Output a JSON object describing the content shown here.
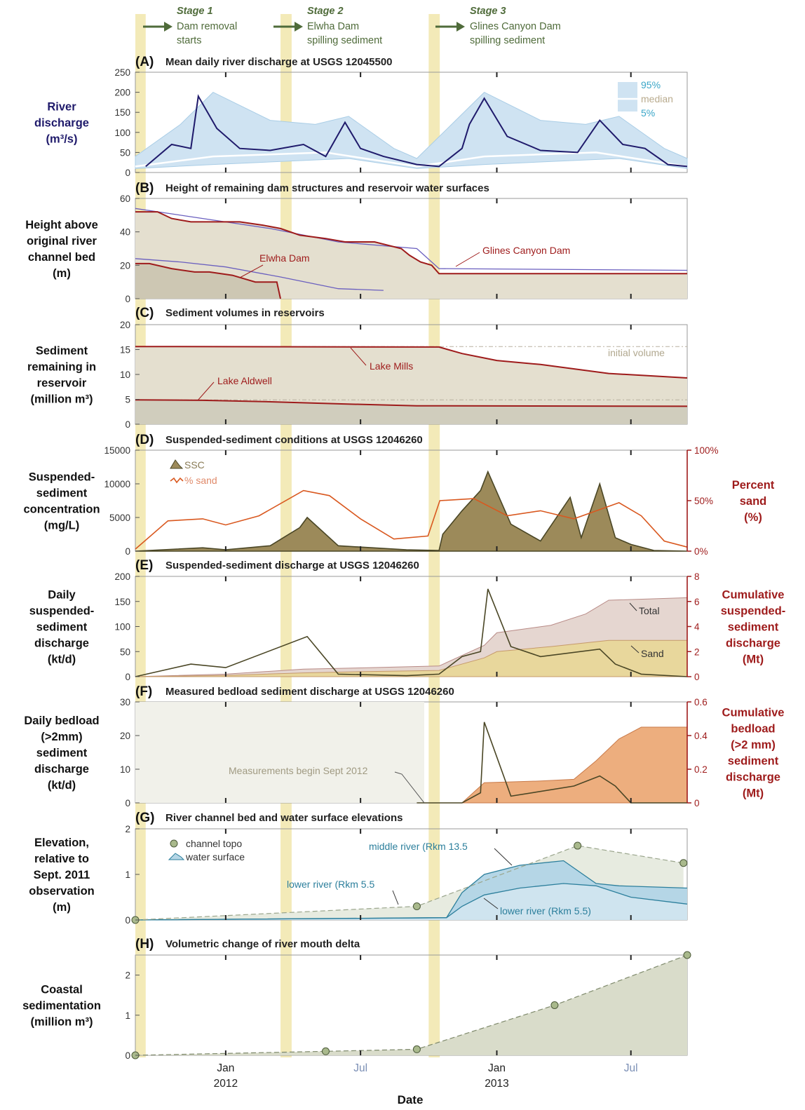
{
  "colors": {
    "stage_band": "#f3eab8",
    "arrow": "#4f6b3a",
    "stage_text": "#4f6b3a",
    "dark_red": "#9e1b1b",
    "navy": "#1f1a6b",
    "light_blue": "#cfe3f2",
    "tan": "#e4dfcf",
    "dark_olive": "#4a4625",
    "olive_fill": "#9c8a5a",
    "orange_line": "#d9581f",
    "total_fill": "#e5d6d0",
    "sand_fill": "#e8d79c",
    "bedload_fill": "#edae7e",
    "teal": "#2c7f9c",
    "water_fill": "#b5d6e6",
    "topo_fill": "#e7ebe0",
    "delta_fill": "#d9dcca",
    "point_fill": "#a9b98c"
  },
  "stages": [
    {
      "title": "Stage 1",
      "line1": "Dam removal",
      "line2": "starts"
    },
    {
      "title": "Stage 2",
      "line1": "Elwha Dam",
      "line2": "spilling sediment"
    },
    {
      "title": "Stage 3",
      "line1": "Glines Canyon Dam",
      "line2": "spilling sediment"
    }
  ],
  "x_axis": {
    "tick_labels": [
      {
        "label": "Jan",
        "year": "2012",
        "date": "2012-01-01"
      },
      {
        "label": "Jul",
        "year": "",
        "date": "2012-07-01"
      },
      {
        "label": "Jan",
        "year": "2013",
        "date": "2013-01-01"
      },
      {
        "label": "Jul",
        "year": "",
        "date": "2013-07-01"
      }
    ],
    "xlabel": "Date",
    "range": [
      "2011-09-01",
      "2013-09-15"
    ]
  },
  "chart_data": [
    {
      "panel": "(A)",
      "title": "Mean daily river discharge at USGS 12045500",
      "type": "area",
      "ylabel_lines": [
        "River",
        "discharge",
        "(m³/s)"
      ],
      "ylim": [
        0,
        250
      ],
      "yticks": [
        0,
        50,
        100,
        150,
        200,
        250
      ],
      "legend": [
        "95%",
        "median",
        "5%"
      ],
      "series": [
        {
          "name": "daily discharge",
          "x": [
            "2011-09-15",
            "2011-10-20",
            "2011-11-15",
            "2011-11-25",
            "2011-12-20",
            "2012-01-20",
            "2012-03-01",
            "2012-04-15",
            "2012-05-15",
            "2012-06-10",
            "2012-07-01",
            "2012-08-01",
            "2012-09-15",
            "2012-10-15",
            "2012-11-15",
            "2012-11-25",
            "2012-12-15",
            "2013-01-15",
            "2013-03-01",
            "2013-04-20",
            "2013-05-20",
            "2013-06-20",
            "2013-07-20",
            "2013-08-20",
            "2013-09-15"
          ],
          "values": [
            15,
            70,
            60,
            190,
            110,
            60,
            55,
            70,
            40,
            125,
            60,
            40,
            20,
            15,
            60,
            120,
            185,
            90,
            55,
            50,
            130,
            70,
            60,
            20,
            15
          ]
        },
        {
          "name": "95%",
          "x": [
            "2011-09-01",
            "2011-11-01",
            "2011-12-15",
            "2012-03-01",
            "2012-05-01",
            "2012-06-15",
            "2012-08-15",
            "2012-09-15",
            "2012-11-01",
            "2012-12-15",
            "2013-03-01",
            "2013-05-01",
            "2013-06-15",
            "2013-08-15",
            "2013-09-15"
          ],
          "values": [
            40,
            120,
            200,
            130,
            120,
            140,
            60,
            35,
            120,
            200,
            130,
            120,
            140,
            60,
            35
          ]
        },
        {
          "name": "median",
          "x": [
            "2011-09-01",
            "2011-12-15",
            "2012-05-15",
            "2012-09-15",
            "2012-12-15",
            "2013-05-15",
            "2013-09-15"
          ],
          "values": [
            15,
            40,
            50,
            15,
            40,
            50,
            15
          ]
        },
        {
          "name": "5%",
          "x": [
            "2011-09-01",
            "2011-12-15",
            "2012-06-15",
            "2012-09-15",
            "2012-12-15",
            "2013-06-15",
            "2013-09-15"
          ],
          "values": [
            10,
            20,
            35,
            10,
            20,
            35,
            10
          ]
        }
      ]
    },
    {
      "panel": "(B)",
      "title": "Height of remaining dam structures and reservoir water surfaces",
      "type": "line",
      "ylabel_lines": [
        "Height above",
        "original river",
        "channel bed",
        "(m)"
      ],
      "ylim": [
        0,
        60
      ],
      "yticks": [
        0,
        20,
        40,
        60
      ],
      "annotations": [
        "Elwha Dam",
        "Glines Canyon Dam"
      ],
      "series": [
        {
          "name": "Glines Canyon Dam",
          "x": [
            "2011-09-01",
            "2011-10-01",
            "2011-10-20",
            "2011-11-15",
            "2011-12-10",
            "2012-01-20",
            "2012-02-20",
            "2012-03-15",
            "2012-04-10",
            "2012-05-15",
            "2012-06-10",
            "2012-07-20",
            "2012-08-25",
            "2012-09-05",
            "2012-09-20",
            "2012-10-05",
            "2012-10-15",
            "2013-09-15"
          ],
          "values": [
            52,
            52,
            48,
            46,
            46,
            46,
            44,
            42,
            38,
            36,
            34,
            34,
            30,
            26,
            22,
            20,
            15,
            15
          ]
        },
        {
          "name": "Elwha Dam",
          "x": [
            "2011-09-01",
            "2011-09-20",
            "2011-10-20",
            "2011-11-20",
            "2011-12-10",
            "2012-01-10",
            "2012-02-10",
            "2012-03-10",
            "2012-03-15"
          ],
          "values": [
            21,
            21,
            18,
            16,
            16,
            14,
            10,
            10,
            0
          ]
        },
        {
          "name": "Lake Mills water surface",
          "x": [
            "2011-09-01",
            "2011-12-01",
            "2012-03-01",
            "2012-06-01",
            "2012-09-15",
            "2012-10-15",
            "2013-09-15"
          ],
          "values": [
            54,
            48,
            42,
            34,
            30,
            18,
            17
          ]
        },
        {
          "name": "Lake Aldwell water surface",
          "x": [
            "2011-09-01",
            "2011-11-01",
            "2012-01-01",
            "2012-03-15",
            "2012-06-01",
            "2012-08-01"
          ],
          "values": [
            24,
            22,
            19,
            13,
            6,
            5
          ]
        }
      ]
    },
    {
      "panel": "(C)",
      "title": "Sediment volumes in reservoirs",
      "type": "line",
      "ylabel_lines": [
        "Sediment",
        "remaining in",
        "reservoir",
        "(million m³)"
      ],
      "ylim": [
        0,
        20
      ],
      "yticks": [
        0,
        5,
        10,
        15,
        20
      ],
      "annotations": [
        "initial volume",
        "Lake Mills",
        "Lake Aldwell"
      ],
      "series": [
        {
          "name": "Lake Mills",
          "x": [
            "2011-09-01",
            "2012-10-15",
            "2012-11-15",
            "2013-01-01",
            "2013-03-01",
            "2013-06-01",
            "2013-09-15"
          ],
          "values": [
            15.6,
            15.5,
            14.2,
            12.8,
            12.0,
            10.2,
            9.3
          ]
        },
        {
          "name": "Lake Aldwell",
          "x": [
            "2011-09-01",
            "2011-12-01",
            "2012-03-01",
            "2012-06-01",
            "2012-09-15",
            "2013-09-15"
          ],
          "values": [
            4.9,
            4.8,
            4.5,
            4.1,
            3.7,
            3.6
          ]
        }
      ]
    },
    {
      "panel": "(D)",
      "title": "Suspended-sediment conditions at USGS 12046260",
      "type": "line",
      "ylabel_lines": [
        "Suspended-",
        "sediment",
        "concentration",
        "(mg/L)"
      ],
      "ylabel2_lines": [
        "Percent",
        "sand",
        "(%)"
      ],
      "ylim": [
        0,
        15000
      ],
      "yticks": [
        0,
        5000,
        10000,
        15000
      ],
      "ylim2": [
        0,
        100
      ],
      "yticks2": [
        "0%",
        "50%",
        "100%"
      ],
      "legend": [
        "SSC",
        "% sand"
      ],
      "series": [
        {
          "name": "SSC",
          "x": [
            "2011-09-01",
            "2011-12-01",
            "2012-01-01",
            "2012-03-01",
            "2012-04-10",
            "2012-04-20",
            "2012-06-01",
            "2012-09-01",
            "2012-10-15",
            "2012-10-20",
            "2012-11-15",
            "2012-12-10",
            "2012-12-20",
            "2013-01-20",
            "2013-03-01",
            "2013-04-10",
            "2013-04-25",
            "2013-05-20",
            "2013-06-10",
            "2013-07-01",
            "2013-08-01",
            "2013-09-15"
          ],
          "values": [
            0,
            500,
            200,
            800,
            3500,
            5000,
            800,
            200,
            100,
            2500,
            6000,
            9000,
            11800,
            4000,
            1500,
            8000,
            2000,
            10000,
            2000,
            1000,
            100,
            0
          ]
        },
        {
          "name": "% sand",
          "x": [
            "2011-09-01",
            "2011-10-15",
            "2011-12-01",
            "2012-01-01",
            "2012-02-15",
            "2012-04-15",
            "2012-05-20",
            "2012-07-01",
            "2012-08-15",
            "2012-09-30",
            "2012-10-16",
            "2012-12-01",
            "2013-01-15",
            "2013-03-01",
            "2013-04-15",
            "2013-06-15",
            "2013-07-15",
            "2013-08-15",
            "2013-09-15"
          ],
          "values": [
            2,
            30,
            32,
            26,
            35,
            60,
            55,
            32,
            12,
            15,
            50,
            52,
            35,
            40,
            32,
            48,
            35,
            10,
            4
          ]
        }
      ]
    },
    {
      "panel": "(E)",
      "title": "Suspended-sediment discharge at USGS 12046260",
      "type": "area",
      "ylabel_lines": [
        "Daily",
        "suspended-",
        "sediment",
        "discharge",
        "(kt/d)"
      ],
      "ylabel2_lines": [
        "Cumulative",
        "suspended-",
        "sediment",
        "discharge",
        "(Mt)"
      ],
      "ylim": [
        0,
        200
      ],
      "yticks": [
        0,
        50,
        100,
        150,
        200
      ],
      "ylim2": [
        0,
        8
      ],
      "yticks2": [
        0,
        2,
        4,
        6,
        8
      ],
      "annotations": [
        "Total",
        "Sand"
      ],
      "series": [
        {
          "name": "Total",
          "x": [
            "2011-09-01",
            "2012-01-01",
            "2012-04-15",
            "2012-07-01",
            "2012-10-15",
            "2012-12-15",
            "2013-01-01",
            "2013-03-15",
            "2013-05-01",
            "2013-06-01",
            "2013-09-15"
          ],
          "values": [
            0,
            0.2,
            0.6,
            0.7,
            0.85,
            2.5,
            3.5,
            4.1,
            5.0,
            6.1,
            6.3
          ]
        },
        {
          "name": "Sand",
          "x": [
            "2011-09-01",
            "2012-01-01",
            "2012-04-15",
            "2012-07-01",
            "2012-10-15",
            "2012-12-15",
            "2013-01-01",
            "2013-03-15",
            "2013-05-01",
            "2013-06-01",
            "2013-09-15"
          ],
          "values": [
            0,
            0.1,
            0.3,
            0.4,
            0.5,
            1.5,
            2.0,
            2.4,
            2.7,
            2.9,
            2.9
          ]
        },
        {
          "name": "Daily",
          "x": [
            "2011-09-01",
            "2011-11-15",
            "2012-01-01",
            "2012-04-20",
            "2012-06-01",
            "2012-09-01",
            "2012-10-15",
            "2012-11-15",
            "2012-12-10",
            "2012-12-20",
            "2013-01-20",
            "2013-03-01",
            "2013-05-20",
            "2013-06-10",
            "2013-07-15",
            "2013-09-15"
          ],
          "values": [
            0,
            25,
            18,
            80,
            5,
            2,
            5,
            40,
            50,
            175,
            60,
            40,
            55,
            25,
            5,
            0
          ]
        }
      ]
    },
    {
      "panel": "(F)",
      "title": "Measured bedload sediment discharge at USGS 12046260",
      "type": "area",
      "ylabel_lines": [
        "Daily bedload",
        "(>2mm)",
        "sediment",
        "discharge",
        "(kt/d)"
      ],
      "ylabel2_lines": [
        "Cumulative",
        "bedload",
        "(>2 mm)",
        "sediment",
        "discharge",
        "(Mt)"
      ],
      "ylim": [
        0,
        30
      ],
      "yticks": [
        0,
        10,
        20,
        30
      ],
      "ylim2": [
        0,
        0.6
      ],
      "yticks2": [
        0,
        0.2,
        0.4,
        0.6
      ],
      "annotations": [
        "Measurements begin Sept 2012"
      ],
      "series": [
        {
          "name": "Cumulative bedload",
          "x": [
            "2012-11-15",
            "2012-12-15",
            "2013-03-01",
            "2013-04-15",
            "2013-05-15",
            "2013-06-15",
            "2013-07-15",
            "2013-09-15"
          ],
          "values": [
            0,
            0.12,
            0.13,
            0.14,
            0.25,
            0.38,
            0.45,
            0.45
          ]
        },
        {
          "name": "Daily bedload",
          "x": [
            "2012-09-15",
            "2012-11-15",
            "2012-12-10",
            "2012-12-15",
            "2013-01-20",
            "2013-04-15",
            "2013-05-20",
            "2013-06-10",
            "2013-07-01",
            "2013-09-15"
          ],
          "values": [
            0,
            0,
            3,
            24,
            2,
            5,
            8,
            5,
            0,
            0
          ]
        }
      ]
    },
    {
      "panel": "(G)",
      "title": "River channel bed and water surface elevations",
      "type": "line",
      "ylabel_lines": [
        "Elevation,",
        "relative to",
        "Sept. 2011",
        "observation",
        "(m)"
      ],
      "ylim": [
        0,
        2
      ],
      "yticks": [
        0,
        1,
        2
      ],
      "legend": [
        "channel topo",
        "water surface"
      ],
      "annotations": [
        "middle river (Rkm 13.5",
        "lower river (Rkm 5.5",
        "lower river (Rkm 5.5)"
      ],
      "series": [
        {
          "name": "channel topo",
          "x": [
            "2011-09-01",
            "2012-09-15",
            "2013-04-20",
            "2013-09-10"
          ],
          "values": [
            0,
            0.3,
            1.63,
            1.25
          ]
        },
        {
          "name": "middle river water surface",
          "x": [
            "2011-09-01",
            "2012-10-01",
            "2012-10-25",
            "2012-11-15",
            "2012-12-15",
            "2013-02-01",
            "2013-04-01",
            "2013-05-15",
            "2013-06-15",
            "2013-09-15"
          ],
          "values": [
            0,
            0.05,
            0.05,
            0.6,
            1.0,
            1.2,
            1.3,
            0.8,
            0.75,
            0.7
          ]
        },
        {
          "name": "lower river water surface",
          "x": [
            "2011-09-01",
            "2012-10-25",
            "2012-11-15",
            "2012-12-15",
            "2013-02-01",
            "2013-04-01",
            "2013-05-15",
            "2013-07-01",
            "2013-09-15"
          ],
          "values": [
            0,
            0.05,
            0.3,
            0.55,
            0.7,
            0.8,
            0.75,
            0.5,
            0.35
          ]
        }
      ]
    },
    {
      "panel": "(H)",
      "title": "Volumetric change of river mouth delta",
      "type": "area",
      "ylabel_lines": [
        "Coastal",
        "sedimentation",
        "(million m³)"
      ],
      "ylim": [
        0,
        2.5
      ],
      "yticks": [
        0,
        1,
        2
      ],
      "series": [
        {
          "name": "delta volume",
          "x": [
            "2011-09-01",
            "2012-05-15",
            "2012-09-15",
            "2013-03-20",
            "2013-09-15"
          ],
          "values": [
            0,
            0.1,
            0.15,
            1.25,
            2.5
          ]
        }
      ]
    }
  ]
}
